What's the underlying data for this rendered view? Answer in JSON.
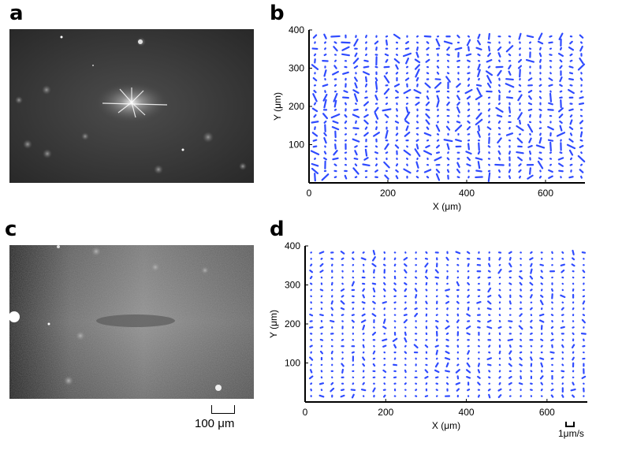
{
  "panels": {
    "a": {
      "letter": "a"
    },
    "b": {
      "letter": "b"
    },
    "c": {
      "letter": "c"
    },
    "d": {
      "letter": "d"
    }
  },
  "colors": {
    "arrow": "#2f4bff",
    "axis": "#000000"
  },
  "scale_bars": {
    "length_label": "100 μm",
    "velocity_label": "1μm/s"
  },
  "chart_data": [
    {
      "panel": "b",
      "type": "scatter",
      "xlabel": "X (μm)",
      "ylabel": "Y (μm)",
      "xlim": [
        0,
        700
      ],
      "ylim": [
        0,
        400
      ],
      "xticks": [
        0,
        200,
        400,
        600
      ],
      "yticks": [
        100,
        200,
        300,
        400
      ],
      "grid": false,
      "representation": "velocity vector field on a regular grid",
      "grid_spec": {
        "x_start": 15,
        "x_step": 26,
        "x_count": 27,
        "y_start": 15,
        "y_step": 16,
        "y_count": 24
      },
      "typical_vector_length_um": 12,
      "seed": 7
    },
    {
      "panel": "d",
      "type": "scatter",
      "xlabel": "X (μm)",
      "ylabel": "Y (μm)",
      "xlim": [
        0,
        700
      ],
      "ylim": [
        0,
        400
      ],
      "xticks": [
        0,
        200,
        400,
        600
      ],
      "yticks": [
        100,
        200,
        300,
        400
      ],
      "grid": false,
      "representation": "velocity vector field on a regular grid",
      "grid_spec": {
        "x_start": 15,
        "x_step": 26,
        "x_count": 27,
        "y_start": 15,
        "y_step": 16,
        "y_count": 24
      },
      "typical_vector_length_um": 6,
      "seed": 21
    }
  ]
}
